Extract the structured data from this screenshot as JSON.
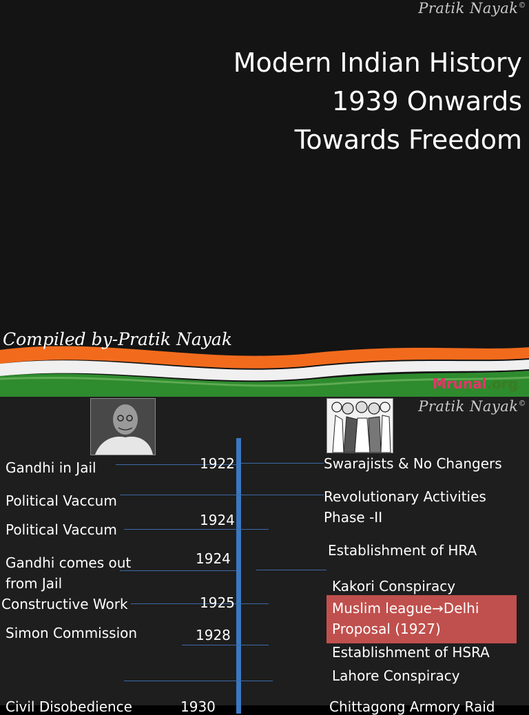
{
  "slide1": {
    "watermark": "Pratik Nayak",
    "copyright_mark": "©",
    "title_lines": [
      "Modern Indian History",
      "1939 Onwards",
      "Towards Freedom"
    ],
    "compiled_by": "Compiled by-Pratik Nayak",
    "brand_part1": "Mrunal",
    "brand_part2": ".org",
    "colors": {
      "background": "#141414",
      "saffron": "#f26b1d",
      "white": "#ffffff",
      "green": "#2e8b2e",
      "brand_red": "#e8336b",
      "brand_green": "#3a7c22"
    }
  },
  "slide2": {
    "watermark": "Pratik Nayak",
    "copyright_mark": "©",
    "left_events": [
      "Gandhi in Jail",
      "Political Vaccum",
      "Political Vaccum",
      "Gandhi comes out",
      "from Jail",
      "Constructive Work",
      "Simon Commission",
      "Civil Disobedience"
    ],
    "years": [
      "1922",
      "1924",
      "1924",
      "1925",
      "1928",
      "1930"
    ],
    "right_events": [
      "Swarajists  & No Changers",
      "Revolutionary Activities",
      "Phase -II",
      "Establishment of HRA",
      "Kakori Conspiracy",
      "Establishment of HSRA",
      "Lahore Conspiracy",
      "Chittagong Armory Raid"
    ],
    "highlight_line1": "Muslim league",
    "highlight_arrow": "→",
    "highlight_line1_end": "Delhi",
    "highlight_line2": "Proposal (1927)",
    "colors": {
      "background": "#1e1e1e",
      "axis": "#3a78c0",
      "highlight": "#c0504d"
    }
  }
}
